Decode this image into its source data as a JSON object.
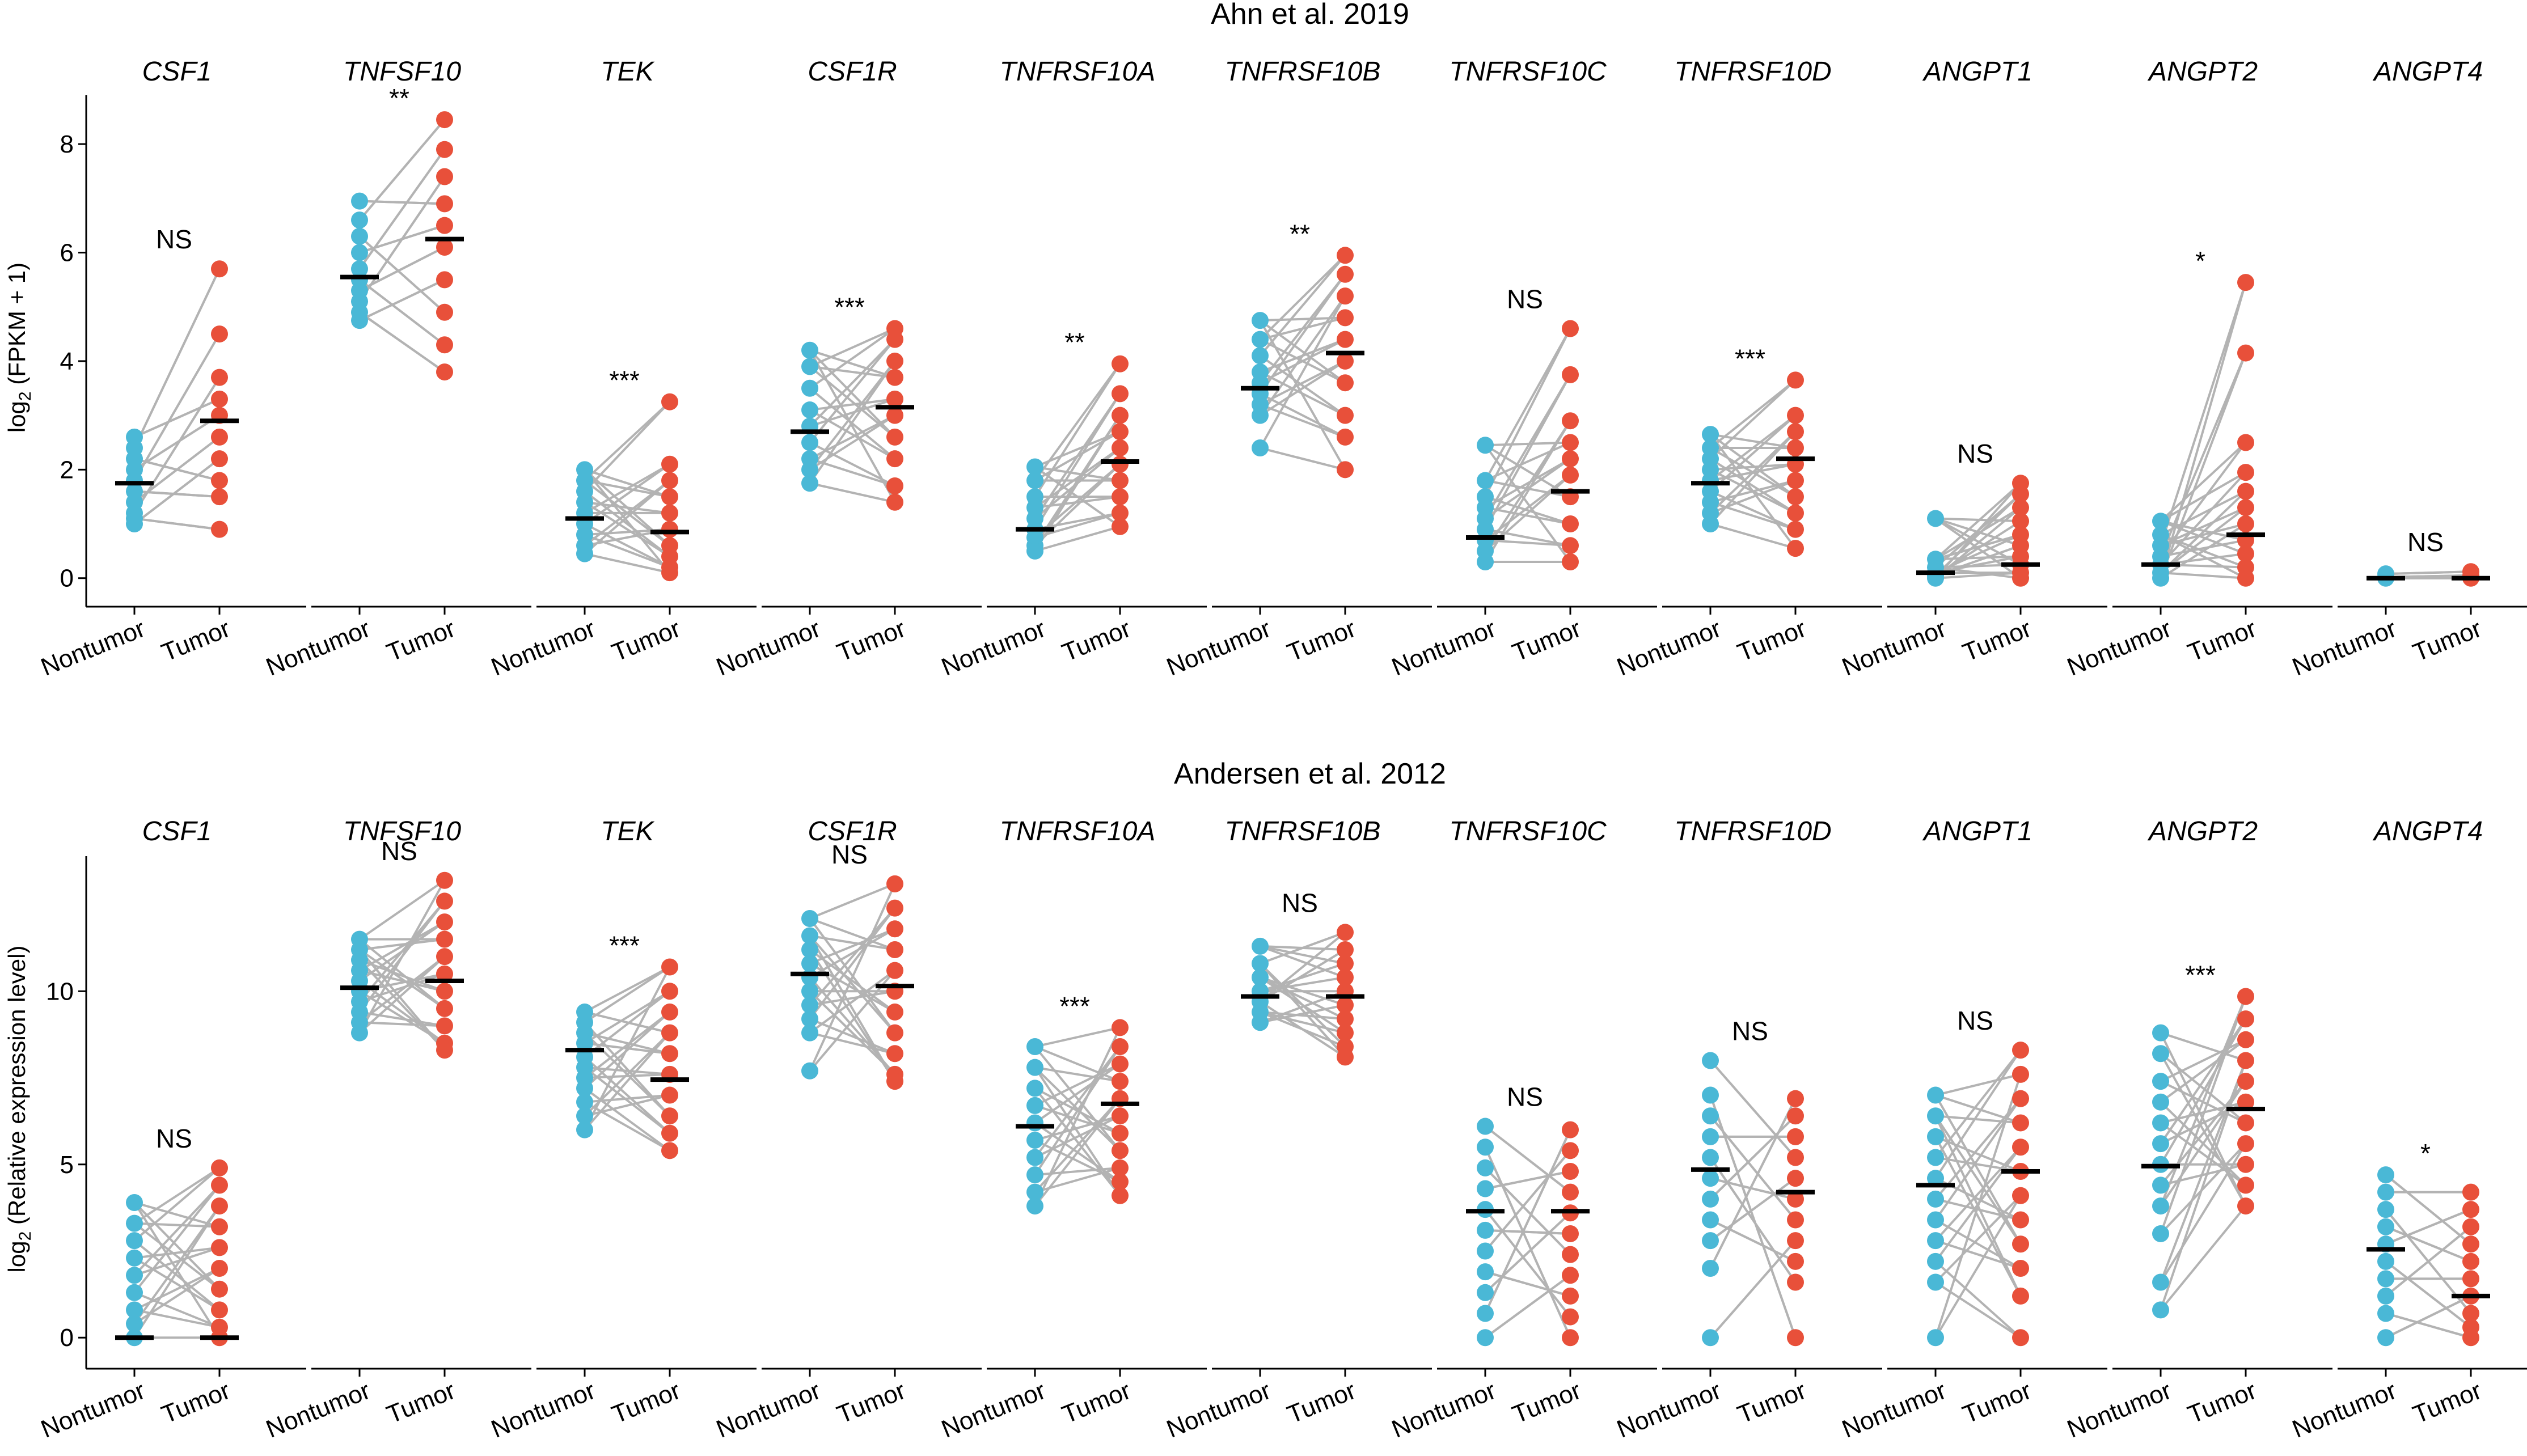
{
  "colors": {
    "nontumor": "#4ab8d6",
    "tumor": "#e8503a",
    "line": "#b3b3b3",
    "median": "#000000"
  },
  "chart_data": [
    {
      "type": "scatter",
      "subtype": "paired-dot-plot",
      "title": "Ahn et al. 2019",
      "ylabel": "log2 (FPKM + 1)",
      "ylim": [
        -0.4,
        8.9
      ],
      "yticks": [
        0,
        2,
        4,
        6,
        8
      ],
      "categories": [
        "Nontumor",
        "Tumor"
      ],
      "panels": [
        {
          "gene": "CSF1",
          "sig": "NS",
          "median": [
            1.75,
            2.9
          ],
          "nontumor": [
            2.6,
            2.4,
            2.2,
            2.0,
            1.8,
            1.6,
            1.4,
            1.2,
            1.1,
            1.0
          ],
          "tumor": [
            5.7,
            4.5,
            3.7,
            3.3,
            3.0,
            2.6,
            2.2,
            1.8,
            1.5,
            0.9
          ]
        },
        {
          "gene": "TNFSF10",
          "sig": "**",
          "median": [
            5.55,
            6.25
          ],
          "nontumor": [
            6.95,
            6.6,
            6.3,
            6.0,
            5.7,
            5.5,
            5.3,
            5.1,
            4.9,
            4.75
          ],
          "tumor": [
            8.45,
            7.9,
            7.4,
            6.9,
            6.5,
            6.1,
            5.5,
            4.9,
            4.3,
            3.8
          ]
        },
        {
          "gene": "TEK",
          "sig": "***",
          "median": [
            1.1,
            0.85
          ],
          "nontumor": [
            2.0,
            1.8,
            1.6,
            1.4,
            1.2,
            1.0,
            0.8,
            0.6,
            0.45
          ],
          "tumor": [
            3.25,
            2.1,
            1.8,
            1.5,
            1.2,
            0.9,
            0.6,
            0.4,
            0.2,
            0.1
          ]
        },
        {
          "gene": "CSF1R",
          "sig": "***",
          "median": [
            2.7,
            3.15
          ],
          "nontumor": [
            4.2,
            3.9,
            3.5,
            3.1,
            2.8,
            2.5,
            2.2,
            2.0,
            1.75
          ],
          "tumor": [
            4.6,
            4.4,
            4.0,
            3.7,
            3.3,
            3.0,
            2.6,
            2.2,
            1.7,
            1.4
          ]
        },
        {
          "gene": "TNFRSF10A",
          "sig": "**",
          "median": [
            0.9,
            2.15
          ],
          "nontumor": [
            2.05,
            1.8,
            1.5,
            1.3,
            1.1,
            0.9,
            0.75,
            0.6,
            0.5
          ],
          "tumor": [
            3.95,
            3.4,
            3.0,
            2.7,
            2.4,
            2.1,
            1.8,
            1.5,
            1.2,
            0.95
          ]
        },
        {
          "gene": "TNFRSF10B",
          "sig": "**",
          "median": [
            3.5,
            4.15
          ],
          "nontumor": [
            4.75,
            4.4,
            4.1,
            3.8,
            3.6,
            3.4,
            3.2,
            3.0,
            2.4
          ],
          "tumor": [
            5.95,
            5.6,
            5.2,
            4.8,
            4.4,
            4.0,
            3.6,
            3.0,
            2.6,
            2.0
          ]
        },
        {
          "gene": "TNFRSF10C",
          "sig": "NS",
          "median": [
            0.75,
            1.6
          ],
          "nontumor": [
            2.45,
            1.8,
            1.5,
            1.3,
            1.1,
            0.9,
            0.7,
            0.5,
            0.3
          ],
          "tumor": [
            4.6,
            3.75,
            2.9,
            2.5,
            2.2,
            1.9,
            1.5,
            1.0,
            0.6,
            0.3
          ]
        },
        {
          "gene": "TNFRSF10D",
          "sig": "***",
          "median": [
            1.75,
            2.2
          ],
          "nontumor": [
            2.65,
            2.4,
            2.2,
            2.0,
            1.8,
            1.6,
            1.4,
            1.2,
            1.0
          ],
          "tumor": [
            3.65,
            3.0,
            2.7,
            2.4,
            2.1,
            1.8,
            1.5,
            1.2,
            0.9,
            0.55
          ]
        },
        {
          "gene": "ANGPT1",
          "sig": "NS",
          "median": [
            0.1,
            0.25
          ],
          "nontumor": [
            1.1,
            0.35,
            0.2,
            0.1,
            0.05,
            0.0
          ],
          "tumor": [
            1.75,
            1.55,
            1.3,
            1.05,
            0.8,
            0.6,
            0.4,
            0.25,
            0.1,
            0.0
          ]
        },
        {
          "gene": "ANGPT2",
          "sig": "*",
          "median": [
            0.25,
            0.8
          ],
          "nontumor": [
            1.05,
            0.8,
            0.6,
            0.4,
            0.25,
            0.1,
            0.0
          ],
          "tumor": [
            5.45,
            4.15,
            2.5,
            1.95,
            1.6,
            1.3,
            1.0,
            0.7,
            0.45,
            0.2,
            0.0
          ]
        },
        {
          "gene": "ANGPT4",
          "sig": "NS",
          "median": [
            0.0,
            0.0
          ],
          "nontumor": [
            0.08,
            0.02,
            0.0
          ],
          "tumor": [
            0.12,
            0.05,
            0.0
          ]
        }
      ]
    },
    {
      "type": "scatter",
      "subtype": "paired-dot-plot",
      "title": "Andersen et al. 2012",
      "ylabel": "log2 (Relative expression level)",
      "ylim": [
        -0.7,
        13.9
      ],
      "yticks": [
        0,
        5,
        10
      ],
      "categories": [
        "Nontumor",
        "Tumor"
      ],
      "panels": [
        {
          "gene": "CSF1",
          "sig": "NS",
          "median": [
            0.0,
            0.0
          ],
          "nontumor": [
            3.9,
            3.3,
            2.8,
            2.3,
            1.8,
            1.3,
            0.8,
            0.4,
            0.0
          ],
          "tumor": [
            4.9,
            4.4,
            3.8,
            3.2,
            2.6,
            2.0,
            1.4,
            0.8,
            0.3,
            0.0
          ]
        },
        {
          "gene": "TNFSF10",
          "sig": "NS",
          "median": [
            10.1,
            10.3
          ],
          "nontumor": [
            11.5,
            11.2,
            10.9,
            10.6,
            10.3,
            10.0,
            9.7,
            9.4,
            9.1,
            8.8
          ],
          "tumor": [
            13.2,
            12.6,
            12.0,
            11.5,
            11.0,
            10.5,
            10.0,
            9.5,
            9.0,
            8.5,
            8.3
          ]
        },
        {
          "gene": "TEK",
          "sig": "***",
          "median": [
            8.3,
            7.45
          ],
          "nontumor": [
            9.4,
            9.1,
            8.8,
            8.5,
            8.1,
            7.8,
            7.5,
            7.2,
            6.8,
            6.4,
            6.0
          ],
          "tumor": [
            10.7,
            10.0,
            9.4,
            8.8,
            8.2,
            7.6,
            7.0,
            6.4,
            5.9,
            5.4
          ]
        },
        {
          "gene": "CSF1R",
          "sig": "NS",
          "median": [
            10.5,
            10.15
          ],
          "nontumor": [
            12.1,
            11.6,
            11.2,
            10.8,
            10.4,
            10.0,
            9.6,
            9.2,
            8.8,
            7.7
          ],
          "tumor": [
            13.1,
            12.4,
            11.8,
            11.2,
            10.6,
            10.0,
            9.4,
            8.8,
            8.2,
            7.6,
            7.4
          ]
        },
        {
          "gene": "TNFRSF10A",
          "sig": "***",
          "median": [
            6.1,
            6.75
          ],
          "nontumor": [
            8.4,
            7.8,
            7.2,
            6.7,
            6.2,
            5.7,
            5.2,
            4.7,
            4.2,
            3.8
          ],
          "tumor": [
            8.95,
            8.4,
            7.9,
            7.4,
            6.9,
            6.4,
            5.9,
            5.4,
            4.9,
            4.5,
            4.1
          ]
        },
        {
          "gene": "TNFRSF10B",
          "sig": "NS",
          "median": [
            9.85,
            9.85
          ],
          "nontumor": [
            11.3,
            10.8,
            10.4,
            10.0,
            9.7,
            9.4,
            9.1
          ],
          "tumor": [
            11.7,
            11.2,
            10.8,
            10.4,
            10.0,
            9.6,
            9.2,
            8.8,
            8.4,
            8.1
          ]
        },
        {
          "gene": "TNFRSF10C",
          "sig": "NS",
          "median": [
            3.65,
            3.65
          ],
          "nontumor": [
            6.1,
            5.5,
            4.9,
            4.3,
            3.7,
            3.1,
            2.5,
            1.9,
            1.3,
            0.7,
            0.0
          ],
          "tumor": [
            6.0,
            5.4,
            4.8,
            4.2,
            3.6,
            3.0,
            2.4,
            1.8,
            1.2,
            0.6,
            0.0
          ]
        },
        {
          "gene": "TNFRSF10D",
          "sig": "NS",
          "median": [
            4.85,
            4.2
          ],
          "nontumor": [
            8.0,
            7.0,
            6.4,
            5.8,
            5.2,
            4.6,
            4.0,
            3.4,
            2.8,
            2.0,
            0.0
          ],
          "tumor": [
            6.9,
            6.4,
            5.8,
            5.2,
            4.6,
            4.0,
            3.4,
            2.8,
            2.2,
            1.6,
            0.0
          ]
        },
        {
          "gene": "ANGPT1",
          "sig": "NS",
          "median": [
            4.4,
            4.8
          ],
          "nontumor": [
            7.0,
            6.4,
            5.8,
            5.2,
            4.6,
            4.0,
            3.4,
            2.8,
            2.2,
            1.6,
            0.0
          ],
          "tumor": [
            8.3,
            7.6,
            6.9,
            6.2,
            5.5,
            4.8,
            4.1,
            3.4,
            2.7,
            2.0,
            1.2,
            0.0
          ]
        },
        {
          "gene": "ANGPT2",
          "sig": "***",
          "median": [
            4.95,
            6.6
          ],
          "nontumor": [
            8.8,
            8.2,
            7.4,
            6.8,
            6.2,
            5.6,
            5.0,
            4.4,
            3.8,
            3.0,
            1.6,
            0.8
          ],
          "tumor": [
            9.85,
            9.2,
            8.6,
            8.0,
            7.4,
            6.8,
            6.2,
            5.6,
            5.0,
            4.4,
            3.8
          ]
        },
        {
          "gene": "ANGPT4",
          "sig": "*",
          "median": [
            2.55,
            1.2
          ],
          "nontumor": [
            4.7,
            4.2,
            3.7,
            3.2,
            2.7,
            2.2,
            1.7,
            1.2,
            0.7,
            0.0
          ],
          "tumor": [
            4.2,
            3.7,
            3.2,
            2.7,
            2.2,
            1.7,
            1.2,
            0.7,
            0.3,
            0.0
          ]
        }
      ]
    }
  ]
}
